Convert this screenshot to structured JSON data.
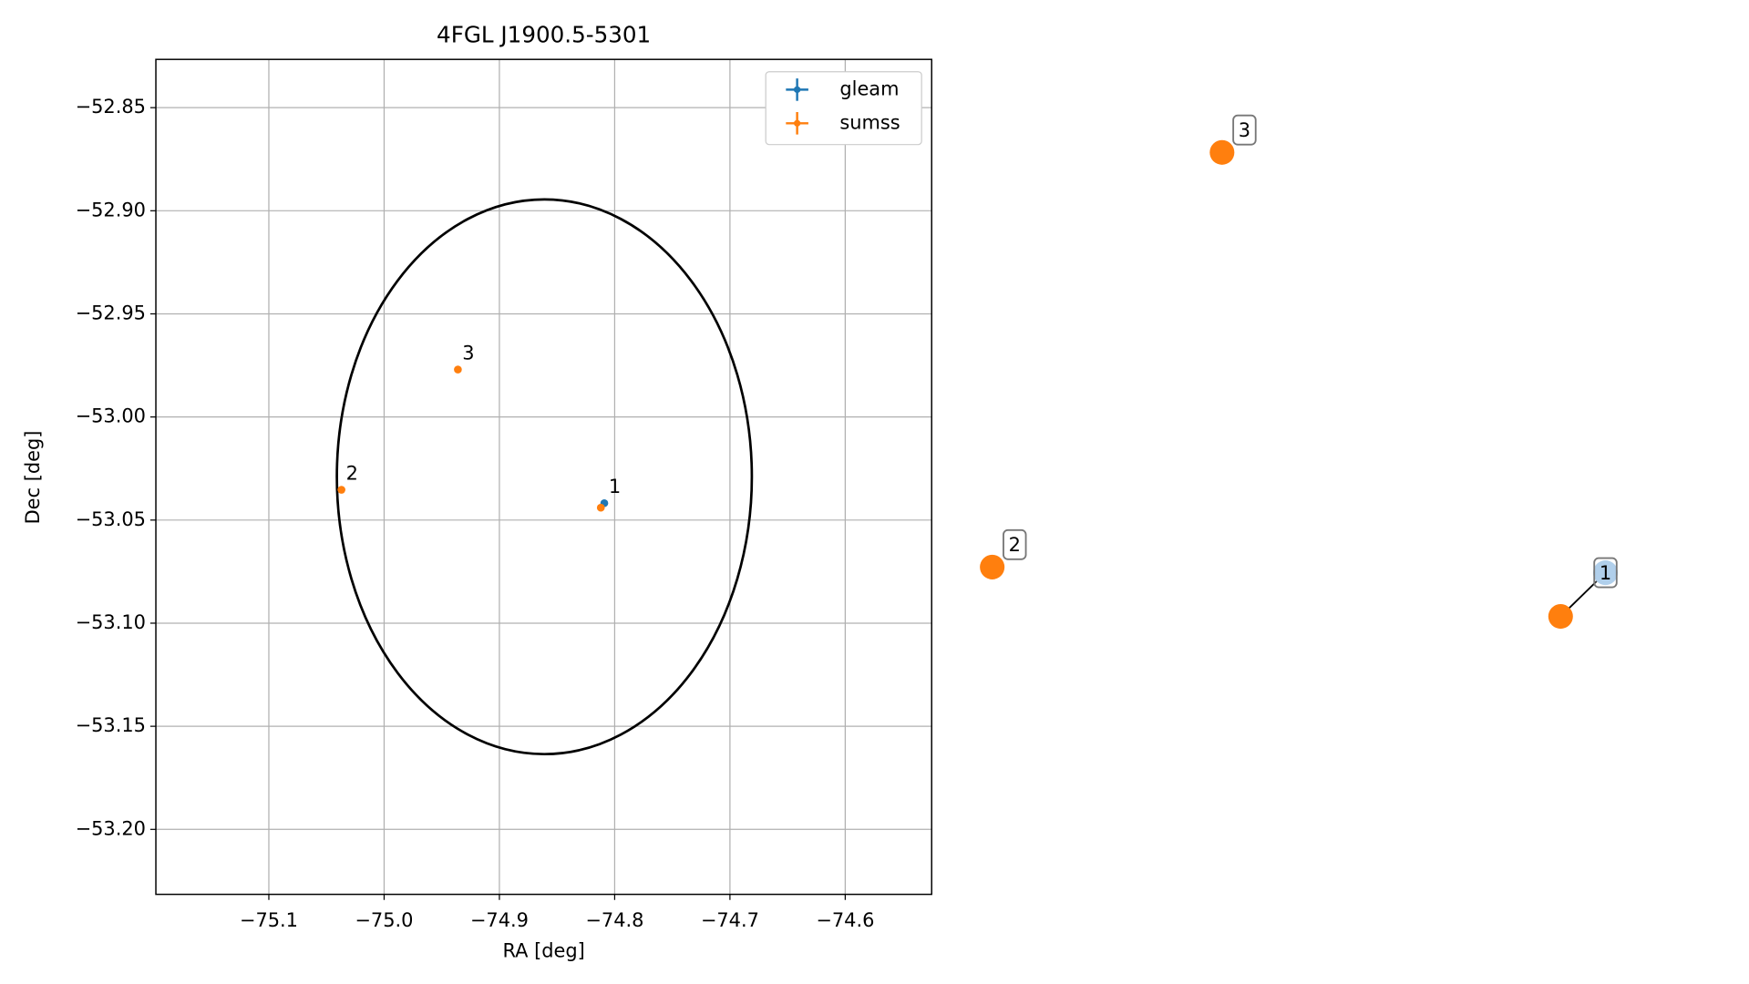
{
  "chart_data": {
    "type": "scatter",
    "title": "4FGL J1900.5-5301",
    "x_label": "RA [deg]",
    "y_label": "Dec [deg]",
    "xlim": [
      -75.198,
      -74.525
    ],
    "ylim": [
      -53.2315,
      -52.8266
    ],
    "xticks": [
      {
        "value": -75.1,
        "label": "−75.1"
      },
      {
        "value": -75.0,
        "label": "−75.0"
      },
      {
        "value": -74.9,
        "label": "−74.9"
      },
      {
        "value": -74.8,
        "label": "−74.8"
      },
      {
        "value": -74.7,
        "label": "−74.7"
      },
      {
        "value": -74.6,
        "label": "−74.6"
      }
    ],
    "yticks": [
      {
        "value": -52.85,
        "label": "−52.85"
      },
      {
        "value": -52.9,
        "label": "−52.90"
      },
      {
        "value": -52.95,
        "label": "−52.95"
      },
      {
        "value": -53.0,
        "label": "−53.00"
      },
      {
        "value": -53.05,
        "label": "−53.05"
      },
      {
        "value": -53.1,
        "label": "−53.10"
      },
      {
        "value": -53.15,
        "label": "−53.15"
      },
      {
        "value": -53.2,
        "label": "−53.20"
      }
    ],
    "grid": true,
    "legend": "upper right",
    "ellipse": {
      "center": [
        -74.861,
        -53.029
      ],
      "width": 0.36,
      "height": 0.269,
      "color": "#000000"
    },
    "series": [
      {
        "name": "gleam",
        "color": "#1f77b4",
        "x": [
          -74.809
        ],
        "values": [
          -53.0418
        ],
        "labels": [
          "1"
        ]
      },
      {
        "name": "sumss",
        "color": "#ff7f0e",
        "x": [
          -74.812,
          -75.037,
          -74.936
        ],
        "values": [
          -53.044,
          -53.0353,
          -52.977
        ],
        "labels": [
          null,
          "2",
          "3"
        ]
      }
    ]
  },
  "graph": {
    "nodes": [
      {
        "label": "3",
        "color": "#ff7f0e"
      },
      {
        "label": "2",
        "color": "#ff7f0e"
      },
      {
        "label": "1",
        "color": "#9dc3e6"
      },
      {
        "color": "#ff7f0e"
      }
    ]
  }
}
